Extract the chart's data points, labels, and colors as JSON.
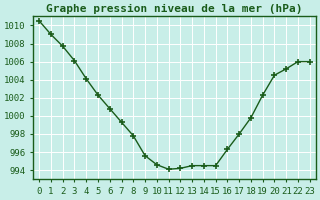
{
  "x": [
    0,
    1,
    2,
    3,
    4,
    5,
    6,
    7,
    8,
    9,
    10,
    11,
    12,
    13,
    14,
    15,
    16,
    17,
    18,
    19,
    20,
    21,
    22,
    23
  ],
  "y": [
    1010.5,
    1009.0,
    1007.7,
    1006.1,
    1004.1,
    1002.3,
    1000.8,
    999.3,
    997.8,
    995.6,
    994.6,
    994.1,
    994.2,
    994.5,
    994.5,
    994.5,
    996.3,
    998.0,
    999.8,
    1002.3,
    1004.5,
    1005.2,
    1006.0,
    1006.0
  ],
  "title": "Graphe pression niveau de la mer (hPa)",
  "ylim": [
    993.0,
    1011.0
  ],
  "xlim": [
    -0.5,
    23.5
  ],
  "yticks": [
    994,
    996,
    998,
    1000,
    1002,
    1004,
    1006,
    1008,
    1010
  ],
  "xticks": [
    0,
    1,
    2,
    3,
    4,
    5,
    6,
    7,
    8,
    9,
    10,
    11,
    12,
    13,
    14,
    15,
    16,
    17,
    18,
    19,
    20,
    21,
    22,
    23
  ],
  "line_color": "#1a5c1a",
  "marker_color": "#1a5c1a",
  "bg_color": "#c8eee8",
  "grid_color": "#ffffff",
  "title_color": "#1a5c1a",
  "title_fontsize": 8.0,
  "tick_fontsize": 6.5,
  "tick_color": "#1a5c1a"
}
